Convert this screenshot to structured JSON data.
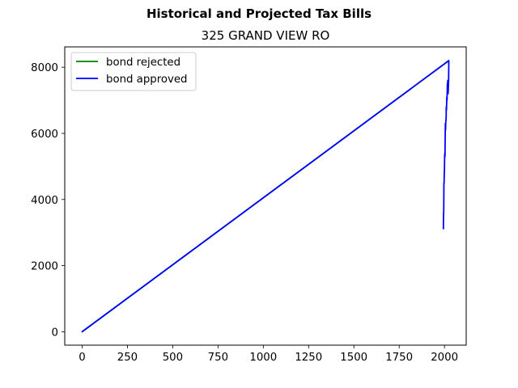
{
  "chart_data": {
    "type": "line",
    "suptitle": "Historical and Projected Tax Bills",
    "title": "325 GRAND VIEW RO",
    "xlabel": "",
    "ylabel": "",
    "xlim": [
      -96,
      2120
    ],
    "ylim": [
      -406,
      8616
    ],
    "xticks": [
      0,
      250,
      500,
      750,
      1000,
      1250,
      1500,
      1750,
      2000
    ],
    "yticks": [
      0,
      2000,
      4000,
      6000,
      8000
    ],
    "xtick_labels": [
      "0",
      "250",
      "500",
      "750",
      "1000",
      "1250",
      "1500",
      "1750",
      "2000"
    ],
    "ytick_labels": [
      "0",
      "2000",
      "4000",
      "6000",
      "8000"
    ],
    "grid": false,
    "legend_position": "upper-left",
    "series": [
      {
        "name": "bond rejected",
        "color": "#008000",
        "x": [
          0,
          2024,
          2025
        ],
        "y": [
          0,
          8200,
          8200
        ]
      },
      {
        "name": "bond approved",
        "color": "#0000ff",
        "x": [
          1994,
          1995,
          1996,
          1997,
          1998,
          1999,
          2000,
          2001,
          2002,
          2003,
          2004,
          2005,
          2006,
          2007,
          2008,
          2009,
          2010,
          2011,
          2012,
          2013,
          2014,
          2015,
          2016,
          2017,
          2018,
          2019,
          2020,
          2021,
          2022,
          2023,
          2024,
          0,
          2024,
          2025
        ],
        "y": [
          3100,
          3600,
          3600,
          4500,
          4500,
          4800,
          4900,
          5300,
          5400,
          5300,
          5900,
          6300,
          6100,
          6300,
          6400,
          6400,
          6800,
          6700,
          6900,
          7100,
          7000,
          7200,
          7500,
          7400,
          7600,
          7500,
          7200,
          7300,
          7500,
          7600,
          8200,
          0,
          8200,
          8200
        ]
      }
    ]
  }
}
